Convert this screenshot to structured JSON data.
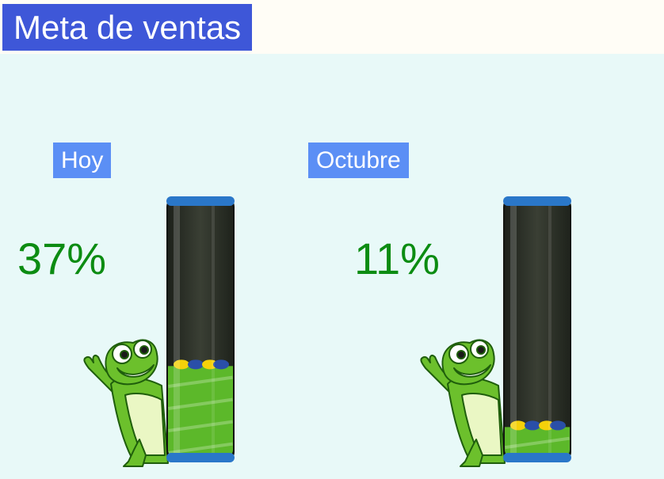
{
  "header": {
    "title": "Meta de ventas"
  },
  "gauges": [
    {
      "label": "Hoy",
      "percent_text": "37%",
      "fill_fraction": 0.37
    },
    {
      "label": "Octubre",
      "percent_text": "11%",
      "fill_fraction": 0.11
    }
  ],
  "colors": {
    "title_bg": "#3e57d8",
    "label_bg": "#5b8ff5",
    "percent_text": "#0c8c12",
    "fill_green": "#5cb82a",
    "tube_dark": "#2b2f26",
    "cap_blue": "#2a77c9",
    "panel_bg": "#e8f9f8"
  },
  "icons": {
    "mascot": "frog-mascot-icon"
  }
}
